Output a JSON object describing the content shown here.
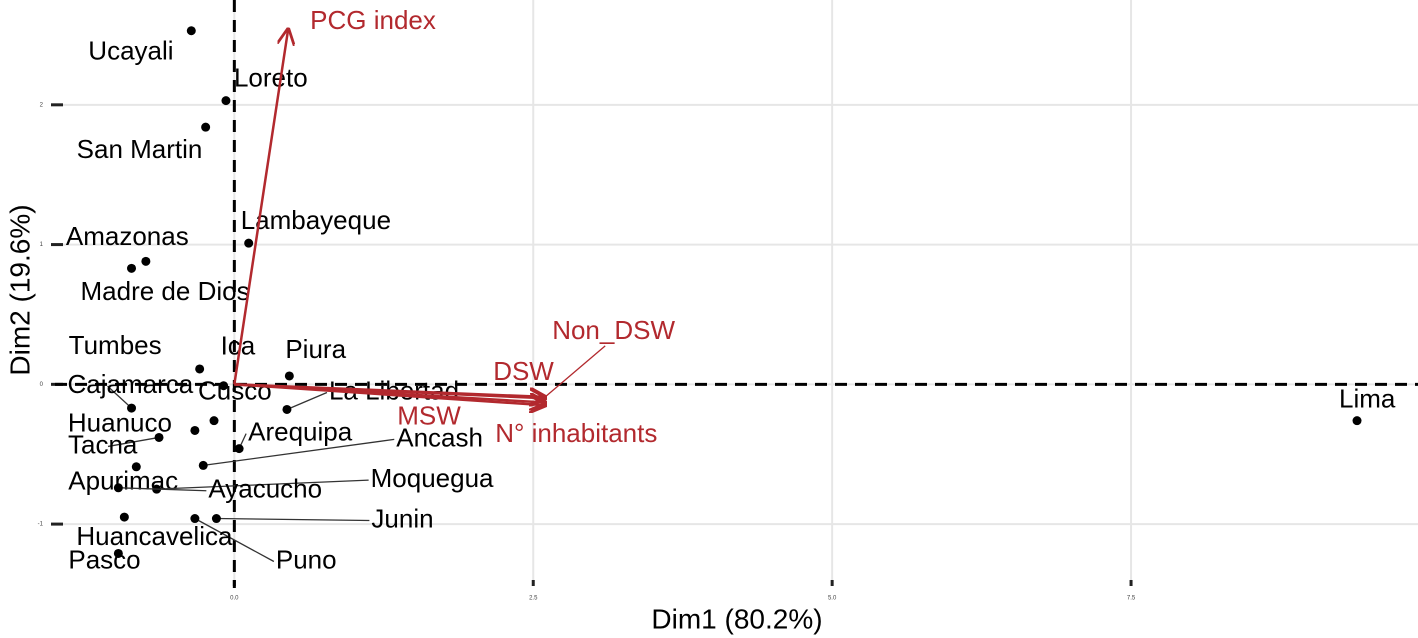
{
  "chart_data": {
    "type": "biplot",
    "xlabel": "Dim1 (80.2%)",
    "ylabel": "Dim2 (19.6%)",
    "labels": [
      "Ucayali",
      "Loreto",
      "San Martin",
      "Lambayeque",
      "Amazonas",
      "Madre de Dios",
      "Tumbes",
      "Ica",
      "Piura",
      "Cajamarca",
      "Cusco",
      "La Libertad",
      "Huanuco",
      "Tacna",
      "Arequipa",
      "Ancash",
      "Apurimac",
      "Moquegua",
      "Ayacucho",
      "Junin",
      "Puno",
      "Huancavelica",
      "Pasco",
      "Lima"
    ],
    "x": [
      -0.36,
      -0.07,
      -0.24,
      0.12,
      -0.74,
      -0.86,
      -0.29,
      -0.09,
      0.46,
      -0.86,
      -0.17,
      0.44,
      -0.33,
      -0.63,
      0.04,
      -0.26,
      -0.82,
      -0.65,
      -0.97,
      -0.15,
      -0.33,
      -0.92,
      -0.97,
      9.39
    ],
    "values": [
      2.53,
      2.03,
      1.84,
      1.01,
      0.88,
      0.83,
      0.11,
      -0.01,
      0.06,
      -0.17,
      -0.26,
      -0.18,
      -0.33,
      -0.38,
      -0.46,
      -0.58,
      -0.59,
      -0.75,
      -0.74,
      -0.96,
      -0.96,
      -0.95,
      -1.21,
      -0.26
    ],
    "color": "#000000",
    "arrows": [
      {
        "name": "PCG index",
        "x": 0.45,
        "y": 2.54
      },
      {
        "name": "Non_DSW",
        "x": 2.6,
        "y": -0.09
      },
      {
        "name": "DSW",
        "x": 2.6,
        "y": -0.1
      },
      {
        "name": "MSW",
        "x": 2.6,
        "y": -0.13
      },
      {
        "name": "N° inhabitants",
        "x": 2.6,
        "y": -0.15
      }
    ],
    "arrow_color": "#b2292e",
    "xlim": [
      -1.5,
      9.9
    ],
    "ylim": [
      -1.4,
      2.75
    ],
    "xticks": [
      {
        "value": 0,
        "label": "0.0"
      },
      {
        "value": 2.5,
        "label": "2.5"
      },
      {
        "value": 5,
        "label": "5.0"
      },
      {
        "value": 7.5,
        "label": "7.5"
      }
    ],
    "yticks": [
      -1,
      0,
      1,
      2
    ],
    "grid": true
  }
}
